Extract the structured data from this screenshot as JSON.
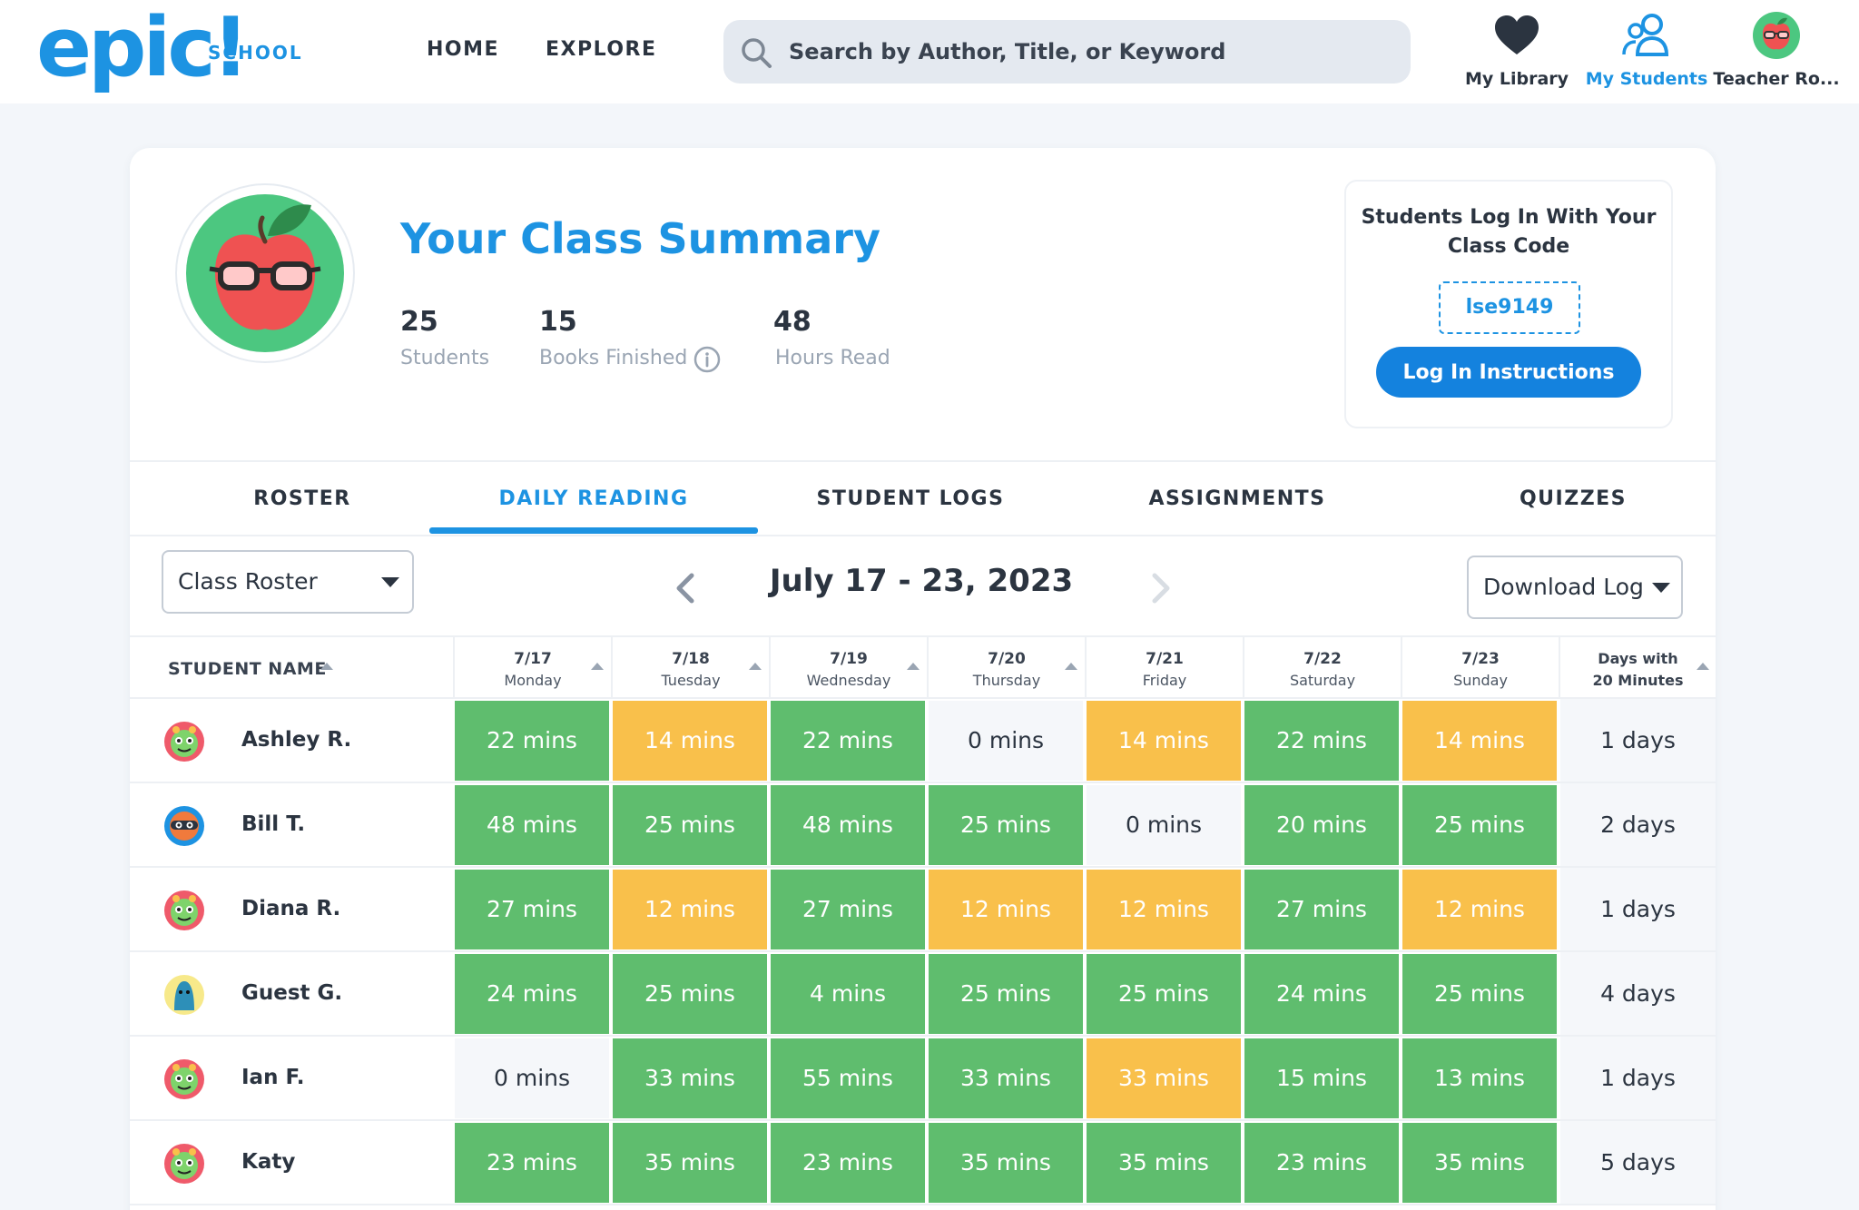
{
  "nav": {
    "logo": "epic!",
    "logo_sub": "SCHOOL",
    "home": "HOME",
    "explore": "EXPLORE",
    "search_placeholder": "Search by Author, Title, or Keyword",
    "my_library": "My Library",
    "my_students": "My Students",
    "teacher": "Teacher Ro...",
    "active_color": "#1d93e2"
  },
  "summary": {
    "title": "Your Class Summary",
    "stats": [
      {
        "value": "25",
        "label": "Students"
      },
      {
        "value": "15",
        "label": "Books Finished"
      },
      {
        "value": "48",
        "label": "Hours Read"
      }
    ]
  },
  "class_code": {
    "title_line1": "Students Log In With Your",
    "title_line2": "Class Code",
    "code": "lse9149",
    "button": "Log In Instructions"
  },
  "tabs": [
    "ROSTER",
    "DAILY READING",
    "STUDENT LOGS",
    "ASSIGNMENTS",
    "QUIZZES"
  ],
  "active_tab": "DAILY READING",
  "controls": {
    "roster_select": "Class Roster",
    "date_range": "July 17 - 23, 2023",
    "download": "Download Log"
  },
  "table": {
    "student_col": "STUDENT NAME",
    "days": [
      {
        "date": "7/17",
        "day": "Monday"
      },
      {
        "date": "7/18",
        "day": "Tuesday"
      },
      {
        "date": "7/19",
        "day": "Wednesday"
      },
      {
        "date": "7/20",
        "day": "Thursday"
      },
      {
        "date": "7/21",
        "day": "Friday"
      },
      {
        "date": "7/22",
        "day": "Saturday"
      },
      {
        "date": "7/23",
        "day": "Sunday"
      }
    ],
    "summary_col_line1": "Days with",
    "summary_col_line2": "20 Minutes",
    "rows": [
      {
        "name": "Ashley R.",
        "avatar": "green-monster",
        "cells": [
          "22 mins",
          "14 mins",
          "22 mins",
          "0 mins",
          "14 mins",
          "22 mins",
          "14 mins"
        ],
        "status": [
          "green",
          "yellow",
          "green",
          "empty",
          "yellow",
          "green",
          "yellow"
        ],
        "days": "1 days"
      },
      {
        "name": "Bill T.",
        "avatar": "orange-ninja",
        "cells": [
          "48 mins",
          "25 mins",
          "48 mins",
          "25 mins",
          "0 mins",
          "20 mins",
          "25 mins"
        ],
        "status": [
          "green",
          "green",
          "green",
          "green",
          "empty",
          "green",
          "green"
        ],
        "days": "2 days"
      },
      {
        "name": "Diana R.",
        "avatar": "green-monster",
        "cells": [
          "27 mins",
          "12 mins",
          "27 mins",
          "12 mins",
          "12 mins",
          "27 mins",
          "12 mins"
        ],
        "status": [
          "green",
          "yellow",
          "green",
          "yellow",
          "yellow",
          "green",
          "yellow"
        ],
        "days": "1 days"
      },
      {
        "name": "Guest G.",
        "avatar": "blue-blob",
        "cells": [
          "24 mins",
          "25 mins",
          "4 mins",
          "25 mins",
          "25 mins",
          "24 mins",
          "25 mins"
        ],
        "status": [
          "green",
          "green",
          "green",
          "green",
          "green",
          "green",
          "green"
        ],
        "days": "4 days"
      },
      {
        "name": "Ian F.",
        "avatar": "green-monster",
        "cells": [
          "0 mins",
          "33 mins",
          "55 mins",
          "33 mins",
          "33 mins",
          "15 mins",
          "13 mins"
        ],
        "status": [
          "empty",
          "green",
          "green",
          "green",
          "yellow",
          "green",
          "green"
        ],
        "days": "1 days"
      },
      {
        "name": "Katy",
        "avatar": "green-monster",
        "cells": [
          "23 mins",
          "35 mins",
          "23 mins",
          "35 mins",
          "35 mins",
          "23 mins",
          "35 mins"
        ],
        "status": [
          "green",
          "green",
          "green",
          "green",
          "green",
          "green",
          "green"
        ],
        "days": "5 days"
      }
    ]
  }
}
